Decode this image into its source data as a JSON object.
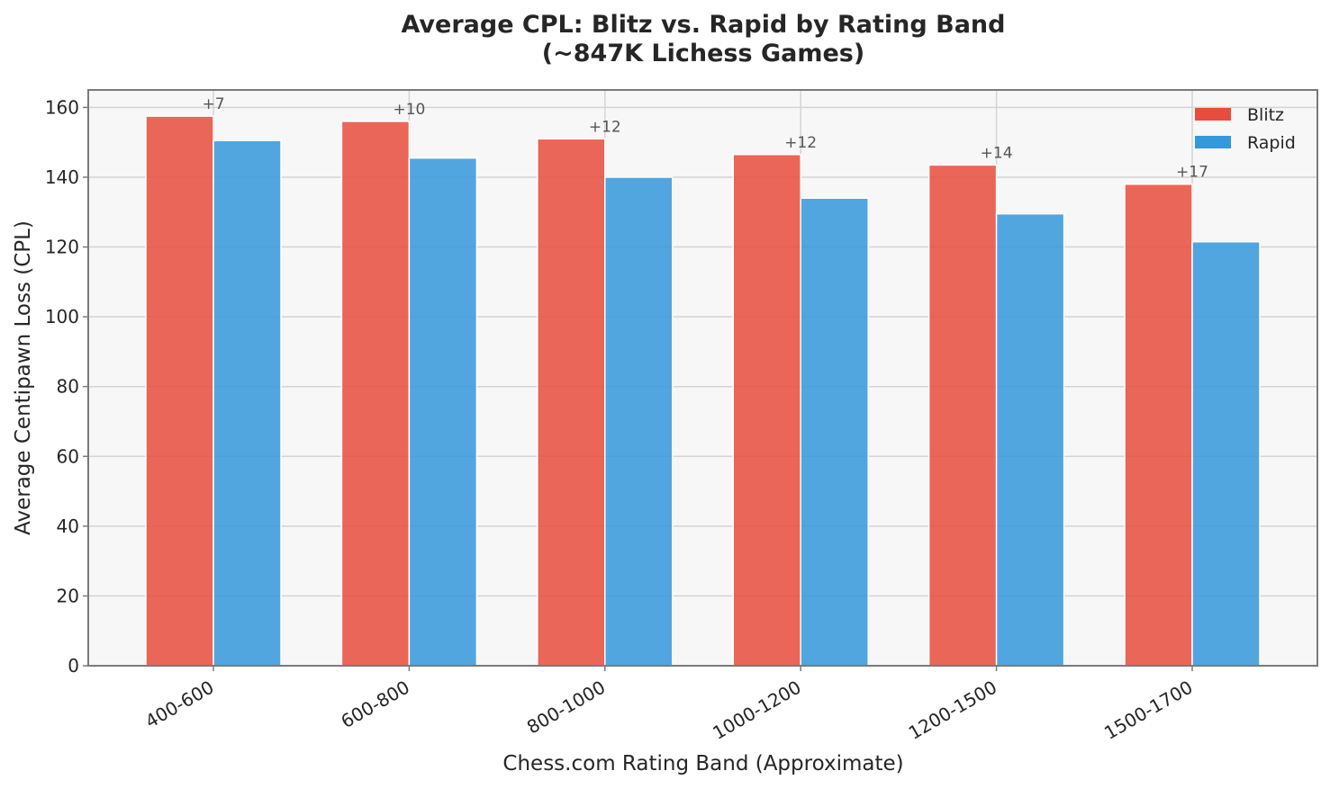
{
  "chart_data": {
    "type": "bar",
    "title_line1": "Average CPL: Blitz vs. Rapid by Rating Band",
    "title_line2": "(~847K Lichess Games)",
    "xlabel": "Chess.com Rating Band (Approximate)",
    "ylabel": "Average Centipawn Loss (CPL)",
    "ylim": [
      0,
      165
    ],
    "yticks": [
      0,
      20,
      40,
      60,
      80,
      100,
      120,
      140,
      160
    ],
    "grid": true,
    "legend_position": "top-right",
    "categories": [
      "400-600",
      "600-800",
      "800-1000",
      "1000-1200",
      "1200-1500",
      "1500-1700"
    ],
    "series": [
      {
        "name": "Blitz",
        "color": "#e74c3c",
        "values": [
          157.5,
          156,
          151,
          146.5,
          143.5,
          138
        ]
      },
      {
        "name": "Rapid",
        "color": "#3498db",
        "values": [
          150.5,
          145.5,
          140,
          134,
          129.5,
          121.5
        ]
      }
    ],
    "difference_labels": [
      "+7",
      "+10",
      "+12",
      "+12",
      "+14",
      "+17"
    ]
  }
}
